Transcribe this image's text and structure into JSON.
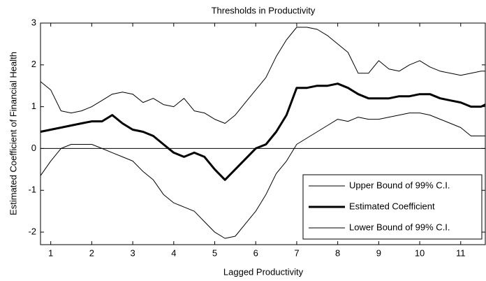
{
  "chart_data": {
    "type": "line",
    "title": "Thresholds in Productivity",
    "x_label": "Lagged Productivity",
    "y_label": "Estimated Coefficient of Financial Health",
    "x": [
      0.75,
      1,
      1.25,
      1.5,
      1.75,
      2,
      2.25,
      2.5,
      2.75,
      3,
      3.25,
      3.5,
      3.75,
      4,
      4.25,
      4.5,
      4.75,
      5,
      5.25,
      5.5,
      5.75,
      6,
      6.25,
      6.5,
      6.75,
      7,
      7.25,
      7.5,
      7.75,
      8,
      8.25,
      8.5,
      8.75,
      9,
      9.25,
      9.5,
      9.75,
      10,
      10.25,
      10.5,
      10.75,
      11,
      11.25,
      11.5,
      11.6
    ],
    "series": [
      {
        "name": "Upper Bound of 99% C.I.",
        "color": "#000000",
        "width": 1,
        "values": [
          1.6,
          1.4,
          0.9,
          0.85,
          0.9,
          1.0,
          1.15,
          1.3,
          1.35,
          1.3,
          1.1,
          1.2,
          1.05,
          1.0,
          1.2,
          0.9,
          0.85,
          0.7,
          0.6,
          0.8,
          1.1,
          1.4,
          1.7,
          2.2,
          2.6,
          2.9,
          2.9,
          2.85,
          2.7,
          2.5,
          2.3,
          1.8,
          1.8,
          2.1,
          1.9,
          1.85,
          2.0,
          2.1,
          1.95,
          1.85,
          1.8,
          1.75,
          1.8,
          1.85,
          1.85
        ]
      },
      {
        "name": "Estimated Coefficient",
        "color": "#000000",
        "width": 3,
        "values": [
          0.4,
          0.45,
          0.5,
          0.55,
          0.6,
          0.65,
          0.65,
          0.8,
          0.6,
          0.45,
          0.4,
          0.3,
          0.1,
          -0.1,
          -0.2,
          -0.1,
          -0.2,
          -0.5,
          -0.75,
          -0.5,
          -0.25,
          0,
          0.1,
          0.4,
          0.8,
          1.45,
          1.45,
          1.5,
          1.5,
          1.55,
          1.45,
          1.3,
          1.2,
          1.2,
          1.2,
          1.25,
          1.25,
          1.3,
          1.3,
          1.2,
          1.15,
          1.1,
          1.0,
          1.0,
          1.05
        ]
      },
      {
        "name": "Lower Bound of 99% C.I.",
        "color": "#000000",
        "width": 1,
        "values": [
          -0.65,
          -0.3,
          0,
          0.1,
          0.1,
          0.1,
          0,
          -0.1,
          -0.2,
          -0.3,
          -0.55,
          -0.75,
          -1.1,
          -1.3,
          -1.4,
          -1.5,
          -1.75,
          -2.0,
          -2.15,
          -2.1,
          -1.8,
          -1.5,
          -1.1,
          -0.6,
          -0.3,
          0.1,
          0.25,
          0.4,
          0.55,
          0.7,
          0.65,
          0.75,
          0.7,
          0.7,
          0.75,
          0.8,
          0.85,
          0.85,
          0.8,
          0.7,
          0.6,
          0.5,
          0.3,
          0.3,
          0.3
        ]
      }
    ],
    "reference_line": 0,
    "xlim": [
      0.75,
      11.6
    ],
    "ylim": [
      -2.3,
      3
    ],
    "xticks": [
      1,
      2,
      3,
      4,
      5,
      6,
      7,
      8,
      9,
      10,
      11
    ],
    "yticks": [
      -2,
      -1,
      0,
      1,
      2,
      3
    ],
    "legend": "lower right"
  }
}
